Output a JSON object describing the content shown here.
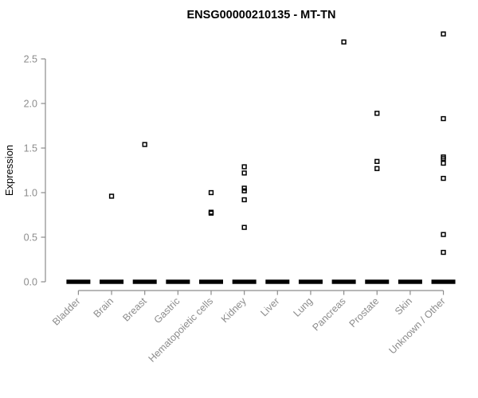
{
  "chart_data": {
    "type": "scatter",
    "variant": "strip-plot",
    "title": "ENSG00000210135 - MT-TN",
    "xlabel": "",
    "ylabel": "Expression",
    "ylim": [
      0.0,
      2.5
    ],
    "yticks": [
      0.0,
      0.5,
      1.0,
      1.5,
      2.0,
      2.5
    ],
    "grid": false,
    "legend": "none",
    "marker": "open-square",
    "categories": [
      "Bladder",
      "Brain",
      "Breast",
      "Gastric",
      "Hematopoietic cells",
      "Kidney",
      "Liver",
      "Lung",
      "Pancreas",
      "Prostate",
      "Skin",
      "Unknown / Other"
    ],
    "groups": [
      {
        "label": "Bladder",
        "zero_cluster": true,
        "points": []
      },
      {
        "label": "Brain",
        "zero_cluster": true,
        "points": [
          0.96
        ]
      },
      {
        "label": "Breast",
        "zero_cluster": true,
        "points": [
          1.54
        ]
      },
      {
        "label": "Gastric",
        "zero_cluster": true,
        "points": []
      },
      {
        "label": "Hematopoietic cells",
        "zero_cluster": true,
        "points": [
          1.0,
          0.78,
          0.77
        ]
      },
      {
        "label": "Kidney",
        "zero_cluster": true,
        "points": [
          1.29,
          1.22,
          1.05,
          1.02,
          0.92,
          0.61
        ]
      },
      {
        "label": "Liver",
        "zero_cluster": true,
        "points": []
      },
      {
        "label": "Lung",
        "zero_cluster": true,
        "points": []
      },
      {
        "label": "Pancreas",
        "zero_cluster": true,
        "points": [
          2.69
        ]
      },
      {
        "label": "Prostate",
        "zero_cluster": true,
        "points": [
          1.89,
          1.35,
          1.27
        ]
      },
      {
        "label": "Skin",
        "zero_cluster": true,
        "points": []
      },
      {
        "label": "Unknown / Other",
        "zero_cluster": true,
        "points": [
          2.78,
          1.83,
          1.4,
          1.38,
          1.33,
          1.16,
          0.53,
          0.33
        ]
      }
    ],
    "colors": {
      "point": "#000000",
      "zero_bar": "#000000",
      "axis": "#8c8c8c",
      "axis_text": "#8c8c8c",
      "title_text": "#000000",
      "background": "#ffffff"
    }
  }
}
